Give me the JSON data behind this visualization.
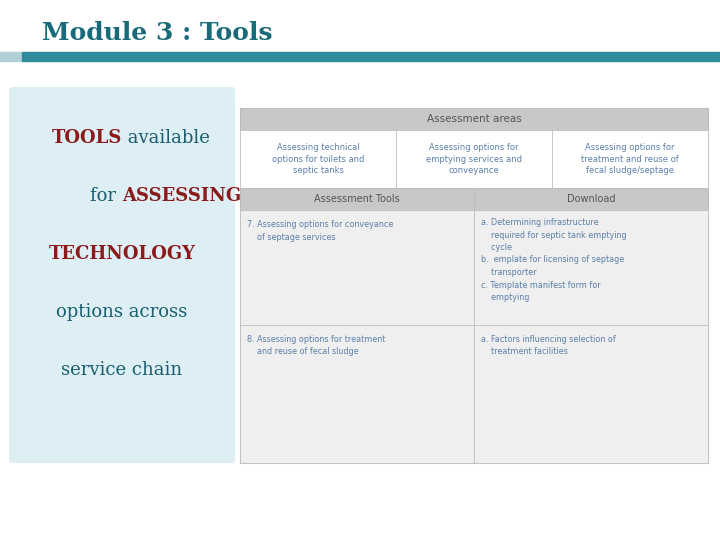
{
  "title": "Module 3 : Tools",
  "title_color": "#1a6b7a",
  "title_fontsize": 18,
  "bar_color": "#2e8b9a",
  "bar2_color": "#b0cfd6",
  "left_box_bg": "#ddeef5",
  "table_header_bg": "#c8c8c8",
  "table_cell_bg": "#efefef",
  "table_text_color": "#5a7fa8",
  "header_text_color": "#555555",
  "assessment_header": "Assessment areas",
  "col1_header": "Assessing technical\noptions for toilets and\nseptic tanks",
  "col2_header": "Assessing options for\nemptying services and\nconveyance",
  "col3_header": "Assessing options for\ntreatment and reuse of\nfecal sludge/septage",
  "tools_header": "Assessment Tools",
  "download_header": "Download",
  "row1_tool": "7. Assessing options for conveyance\n    of septage services",
  "row1_download": "a. Determining infrastructure\n    required for septic tank emptying\n    cycle\nb.  emplate for licensing of septage\n    transporter\nc. Template manifest form for\n    emptying",
  "row2_tool": "8. Assessing options for treatment\n    and reuse of fecal sludge",
  "row2_download": "a. Factors influencing selection of\n    treatment facilities"
}
